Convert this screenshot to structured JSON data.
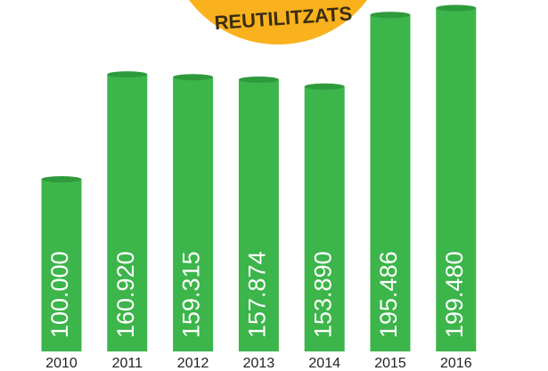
{
  "chart_data": {
    "type": "bar",
    "title": "REUTILITZATS",
    "categories": [
      "2010",
      "2011",
      "2012",
      "2013",
      "2014",
      "2015",
      "2016"
    ],
    "values": [
      100000,
      160920,
      159315,
      157874,
      153890,
      195486,
      199480
    ],
    "value_labels": [
      "100.000",
      "160.920",
      "159.315",
      "157.874",
      "153.890",
      "195.486",
      "199.480"
    ],
    "color": "#3cb54a",
    "badge_color": "#f9b21d"
  }
}
